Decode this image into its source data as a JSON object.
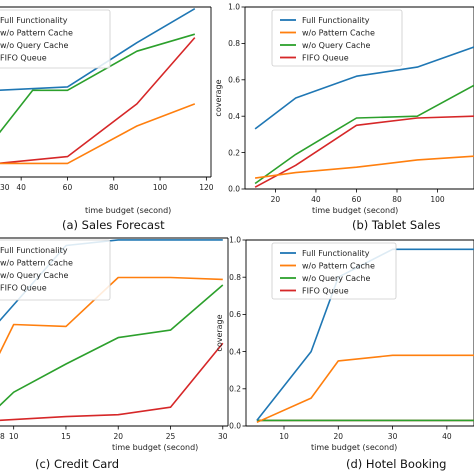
{
  "legend_labels": {
    "full": "Full Functionality",
    "pattern": "w/o Pattern Cache",
    "query": "w/o Query Cache",
    "fifo": "FIFO Queue"
  },
  "series_colors": {
    "full": "#1f77b4",
    "pattern": "#ff7f0e",
    "query": "#2ca02c",
    "fifo": "#d62728"
  },
  "chart_data": [
    {
      "type": "line",
      "caption": "(a) Sales Forecast",
      "xlabel": "time budget (second)",
      "ylabel": "",
      "xlim": [
        30,
        122
      ],
      "ylim": [
        0,
        1.0
      ],
      "xticks": [
        40,
        60,
        80,
        100,
        120
      ],
      "xtick_labels": [
        "40",
        "60",
        "80",
        "100",
        "120"
      ],
      "yticks": [],
      "ytick_labels": [],
      "visible_tick_fragments": [
        {
          "text": "30",
          "x": 30
        }
      ],
      "grid": false,
      "legend": "top-left",
      "series": [
        {
          "key": "full",
          "x": [
            30,
            60,
            90,
            115
          ],
          "y": [
            0.51,
            0.53,
            0.79,
            0.99
          ]
        },
        {
          "key": "pattern",
          "x": [
            30,
            60,
            90,
            115
          ],
          "y": [
            0.08,
            0.08,
            0.3,
            0.43
          ]
        },
        {
          "key": "query",
          "x": [
            30,
            45,
            60,
            90,
            115
          ],
          "y": [
            0.25,
            0.51,
            0.51,
            0.74,
            0.84
          ]
        },
        {
          "key": "fifo",
          "x": [
            30,
            60,
            90,
            115
          ],
          "y": [
            0.08,
            0.12,
            0.43,
            0.82
          ]
        }
      ]
    },
    {
      "type": "line",
      "caption": "(b) Tablet Sales",
      "xlabel": "time budget (second)",
      "ylabel": "coverage",
      "xlim": [
        5,
        118
      ],
      "ylim": [
        0,
        1.0
      ],
      "xticks": [
        20,
        40,
        60,
        80,
        100
      ],
      "xtick_labels": [
        "20",
        "40",
        "60",
        "80",
        "100"
      ],
      "yticks": [
        0,
        0.2,
        0.4,
        0.6,
        0.8,
        1.0
      ],
      "ytick_labels": [
        "0.0",
        "0.2",
        "0.4",
        "0.6",
        "0.8",
        "1.0"
      ],
      "grid": false,
      "legend": "top-left",
      "series": [
        {
          "key": "full",
          "x": [
            10,
            30,
            60,
            90,
            118
          ],
          "y": [
            0.33,
            0.5,
            0.62,
            0.67,
            0.78
          ]
        },
        {
          "key": "pattern",
          "x": [
            10,
            30,
            60,
            90,
            118
          ],
          "y": [
            0.06,
            0.09,
            0.12,
            0.16,
            0.18
          ]
        },
        {
          "key": "query",
          "x": [
            10,
            30,
            60,
            90,
            118
          ],
          "y": [
            0.03,
            0.19,
            0.39,
            0.4,
            0.57
          ]
        },
        {
          "key": "fifo",
          "x": [
            10,
            30,
            60,
            90,
            118
          ],
          "y": [
            0.01,
            0.13,
            0.35,
            0.39,
            0.4
          ]
        }
      ]
    },
    {
      "type": "line",
      "caption": "(c) Credit Card",
      "xlabel": "time budget (second)",
      "ylabel": "",
      "xlim": [
        8.5,
        30.5
      ],
      "ylim": [
        0,
        1.0
      ],
      "xticks": [
        10,
        15,
        20,
        25,
        30
      ],
      "xtick_labels": [
        "10",
        "15",
        "20",
        "25",
        "30"
      ],
      "yticks": [],
      "ytick_labels": [],
      "visible_tick_fragments": [
        {
          "text": "8",
          "x": 8.5
        }
      ],
      "grid": false,
      "legend": "top-left",
      "series": [
        {
          "key": "full",
          "x": [
            8.5,
            15,
            20,
            25,
            30
          ],
          "y": [
            0.55,
            0.96,
            0.99,
            0.99,
            0.99
          ]
        },
        {
          "key": "pattern",
          "x": [
            8.5,
            10,
            15,
            20,
            25,
            30
          ],
          "y": [
            0.37,
            0.54,
            0.53,
            0.79,
            0.79,
            0.78
          ]
        },
        {
          "key": "query",
          "x": [
            8.5,
            10,
            15,
            20,
            25,
            30
          ],
          "y": [
            0.1,
            0.18,
            0.33,
            0.47,
            0.51,
            0.75
          ]
        },
        {
          "key": "fifo",
          "x": [
            8.5,
            15,
            20,
            25,
            30
          ],
          "y": [
            0.03,
            0.05,
            0.06,
            0.1,
            0.44
          ]
        }
      ]
    },
    {
      "type": "line",
      "caption": "(d) Hotel Booking",
      "xlabel": "time budget (second)",
      "ylabel": "coverage",
      "xlim": [
        3,
        45
      ],
      "ylim": [
        0,
        1.0
      ],
      "xticks": [
        10,
        20,
        30,
        40
      ],
      "xtick_labels": [
        "10",
        "20",
        "30",
        "40"
      ],
      "yticks": [
        0,
        0.2,
        0.4,
        0.6,
        0.8,
        1.0
      ],
      "ytick_labels": [
        "0.0",
        "0.2",
        "0.4",
        "0.6",
        "0.8",
        "1.0"
      ],
      "grid": false,
      "legend": "top-left",
      "series": [
        {
          "key": "full",
          "x": [
            5,
            15,
            20,
            30,
            45
          ],
          "y": [
            0.03,
            0.4,
            0.8,
            0.95,
            0.95
          ]
        },
        {
          "key": "pattern",
          "x": [
            5,
            15,
            20,
            30,
            45
          ],
          "y": [
            0.02,
            0.15,
            0.35,
            0.38,
            0.38
          ]
        },
        {
          "key": "query",
          "x": [
            5,
            15,
            45
          ],
          "y": [
            0.03,
            0.03,
            0.03
          ]
        },
        {
          "key": "fifo",
          "x": [
            5,
            15,
            45
          ],
          "y": [
            0.03,
            0.03,
            0.03
          ]
        }
      ]
    }
  ]
}
